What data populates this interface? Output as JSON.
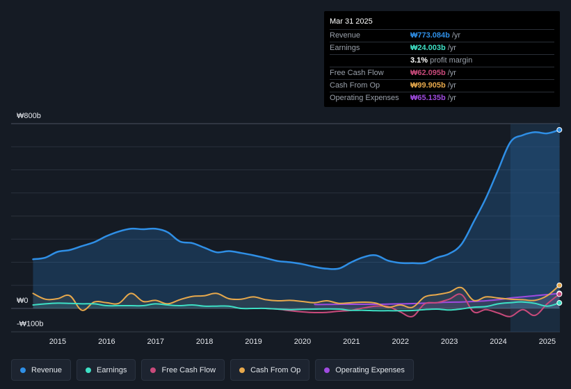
{
  "tooltip": {
    "date": "Mar 31 2025",
    "rows": [
      {
        "label": "Revenue",
        "value": "₩773.084b",
        "unit": "/yr",
        "color": "#2f8fe6"
      },
      {
        "label": "Earnings",
        "value": "₩24.003b",
        "unit": "/yr",
        "color": "#3ee0c5"
      },
      {
        "label": "",
        "value": "3.1%",
        "unit": "profit margin",
        "color": "#ffffff"
      },
      {
        "label": "Free Cash Flow",
        "value": "₩62.095b",
        "unit": "/yr",
        "color": "#c94a7b"
      },
      {
        "label": "Cash From Op",
        "value": "₩99.905b",
        "unit": "/yr",
        "color": "#e8a94c"
      },
      {
        "label": "Operating Expenses",
        "value": "₩65.135b",
        "unit": "/yr",
        "color": "#a04be0"
      }
    ]
  },
  "legend": {
    "items": [
      {
        "label": "Revenue",
        "color": "#2f8fe6"
      },
      {
        "label": "Earnings",
        "color": "#3ee0c5"
      },
      {
        "label": "Free Cash Flow",
        "color": "#c94a7b"
      },
      {
        "label": "Cash From Op",
        "color": "#e8a94c"
      },
      {
        "label": "Operating Expenses",
        "color": "#a04be0"
      }
    ]
  },
  "chart_data": {
    "type": "line",
    "title": "",
    "xlabel": "",
    "ylabel": "",
    "ylim": [
      -100,
      800
    ],
    "y_tick_labels": [
      {
        "value": 800,
        "label": "₩800b"
      },
      {
        "value": 0,
        "label": "₩0"
      },
      {
        "value": -100,
        "label": "-₩100b"
      }
    ],
    "x_tick_labels": [
      "2015",
      "2016",
      "2017",
      "2018",
      "2019",
      "2020",
      "2021",
      "2022",
      "2023",
      "2024",
      "2025"
    ],
    "x_range": [
      2014.5,
      2025.25
    ],
    "highlight_start": 2024.25,
    "series": [
      {
        "name": "Revenue",
        "color": "#2f8fe6",
        "area": true,
        "x": [
          2014.5,
          2014.75,
          2015.0,
          2015.25,
          2015.5,
          2015.75,
          2016.0,
          2016.25,
          2016.5,
          2016.75,
          2017.0,
          2017.25,
          2017.5,
          2017.75,
          2018.0,
          2018.25,
          2018.5,
          2018.75,
          2019.0,
          2019.25,
          2019.5,
          2019.75,
          2020.0,
          2020.25,
          2020.5,
          2020.75,
          2021.0,
          2021.25,
          2021.5,
          2021.75,
          2022.0,
          2022.25,
          2022.5,
          2022.75,
          2023.0,
          2023.25,
          2023.5,
          2023.75,
          2024.0,
          2024.25,
          2024.5,
          2024.75,
          2025.0,
          2025.25
        ],
        "values": [
          213,
          220,
          245,
          253,
          270,
          287,
          313,
          333,
          345,
          343,
          345,
          330,
          290,
          283,
          263,
          243,
          248,
          240,
          230,
          218,
          205,
          200,
          192,
          180,
          172,
          173,
          200,
          222,
          230,
          207,
          197,
          196,
          197,
          220,
          237,
          278,
          375,
          478,
          600,
          720,
          750,
          763,
          758,
          773
        ]
      },
      {
        "name": "Earnings",
        "color": "#3ee0c5",
        "area": false,
        "x": [
          2014.5,
          2014.75,
          2015.0,
          2015.25,
          2015.5,
          2015.75,
          2016.0,
          2016.25,
          2016.5,
          2016.75,
          2017.0,
          2017.25,
          2017.5,
          2017.75,
          2018.0,
          2018.25,
          2018.5,
          2018.75,
          2019.0,
          2019.25,
          2019.5,
          2019.75,
          2020.0,
          2020.25,
          2020.5,
          2020.75,
          2021.0,
          2021.25,
          2021.5,
          2021.75,
          2022.0,
          2022.25,
          2022.5,
          2022.75,
          2023.0,
          2023.25,
          2023.5,
          2023.75,
          2024.0,
          2024.25,
          2024.5,
          2024.75,
          2025.0,
          2025.25
        ],
        "values": [
          15,
          20,
          23,
          22,
          20,
          20,
          12,
          12,
          12,
          12,
          20,
          15,
          12,
          15,
          10,
          10,
          10,
          0,
          0,
          0,
          -3,
          -5,
          -4,
          -3,
          -2,
          -3,
          -8,
          -8,
          -10,
          -10,
          -10,
          -9,
          -5,
          -3,
          -7,
          -2,
          5,
          8,
          20,
          25,
          28,
          22,
          10,
          24
        ]
      },
      {
        "name": "Free Cash Flow",
        "color": "#c94a7b",
        "area": false,
        "x": [
          2019.25,
          2019.5,
          2019.75,
          2020.0,
          2020.25,
          2020.5,
          2020.75,
          2021.0,
          2021.25,
          2021.5,
          2021.75,
          2022.0,
          2022.25,
          2022.5,
          2022.75,
          2023.0,
          2023.25,
          2023.5,
          2023.75,
          2024.0,
          2024.25,
          2024.5,
          2024.75,
          2025.0,
          2025.25
        ],
        "values": [
          0,
          -3,
          -10,
          -15,
          -18,
          -17,
          -12,
          -8,
          2,
          10,
          8,
          -15,
          -35,
          20,
          25,
          40,
          60,
          -15,
          -5,
          -20,
          -35,
          -5,
          -30,
          20,
          62
        ]
      },
      {
        "name": "Cash From Op",
        "color": "#e8a94c",
        "area": false,
        "x": [
          2014.5,
          2014.75,
          2015.0,
          2015.25,
          2015.5,
          2015.75,
          2016.0,
          2016.25,
          2016.5,
          2016.75,
          2017.0,
          2017.25,
          2017.5,
          2017.75,
          2018.0,
          2018.25,
          2018.5,
          2018.75,
          2019.0,
          2019.25,
          2019.5,
          2019.75,
          2020.0,
          2020.25,
          2020.5,
          2020.75,
          2021.0,
          2021.25,
          2021.5,
          2021.75,
          2022.0,
          2022.25,
          2022.5,
          2022.75,
          2023.0,
          2023.25,
          2023.5,
          2023.75,
          2024.0,
          2024.25,
          2024.5,
          2024.75,
          2025.0,
          2025.25
        ],
        "values": [
          65,
          40,
          42,
          55,
          -8,
          28,
          25,
          22,
          65,
          30,
          35,
          20,
          38,
          52,
          55,
          65,
          42,
          40,
          50,
          38,
          33,
          35,
          30,
          25,
          33,
          22,
          25,
          27,
          23,
          5,
          15,
          5,
          50,
          60,
          70,
          90,
          35,
          50,
          45,
          40,
          38,
          35,
          55,
          100
        ]
      },
      {
        "name": "Operating Expenses",
        "color": "#a04be0",
        "area": false,
        "x": [
          2020.25,
          2020.5,
          2020.75,
          2021.0,
          2021.25,
          2021.5,
          2021.75,
          2022.0,
          2022.25,
          2022.5,
          2022.75,
          2023.0,
          2023.25,
          2023.5,
          2023.75,
          2024.0,
          2024.25,
          2024.5,
          2024.75,
          2025.0,
          2025.25
        ],
        "values": [
          17,
          17,
          18,
          18,
          18,
          18,
          19,
          20,
          21,
          23,
          25,
          27,
          28,
          30,
          33,
          38,
          45,
          50,
          55,
          60,
          65
        ]
      }
    ]
  }
}
